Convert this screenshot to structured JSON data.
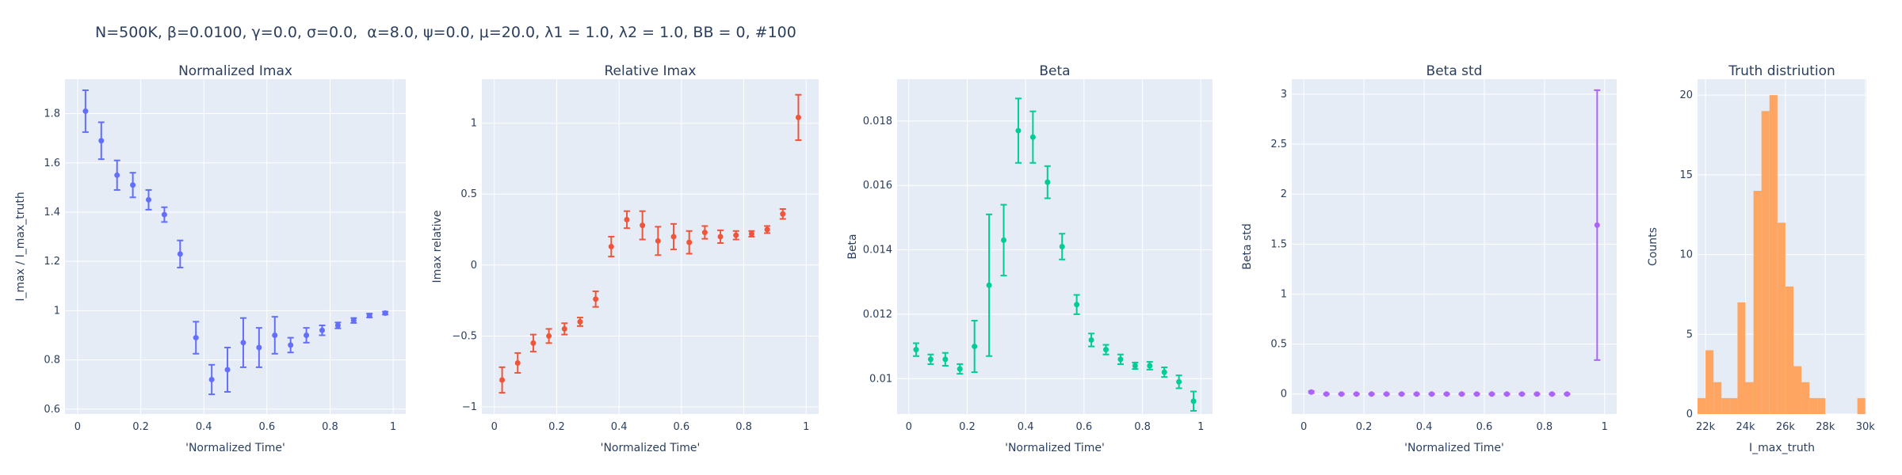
{
  "figure": {
    "title": "N=500K, β=0.0100, γ=0.0, σ=0.0,  α=8.0, ψ=0.0, μ=20.0, λ1 = 1.0, λ2 = 1.0, BB = 0, #100"
  },
  "chart_data": [
    {
      "type": "scatter",
      "title": "Normalized Imax",
      "xlabel": "'Normalized Time'",
      "ylabel": "I_max / I_max_truth",
      "xlim": [
        -0.04,
        1.04
      ],
      "ylim": [
        0.58,
        1.94
      ],
      "xticks": [
        0,
        0.2,
        0.4,
        0.6,
        0.8,
        1
      ],
      "xticklabels": [
        "0",
        "0.2",
        "0.4",
        "0.6",
        "0.8",
        "1"
      ],
      "yticks": [
        0.6,
        0.8,
        1,
        1.2,
        1.4,
        1.6,
        1.8
      ],
      "yticklabels": [
        "0.6",
        "0.8",
        "1",
        "1.2",
        "1.4",
        "1.6",
        "1.8"
      ],
      "color": "#636efa",
      "grid": true,
      "x": [
        0.025,
        0.075,
        0.125,
        0.175,
        0.225,
        0.275,
        0.325,
        0.375,
        0.425,
        0.475,
        0.525,
        0.575,
        0.625,
        0.675,
        0.725,
        0.775,
        0.825,
        0.875,
        0.925,
        0.975
      ],
      "y": [
        1.81,
        1.69,
        1.55,
        1.51,
        1.45,
        1.39,
        1.23,
        0.89,
        0.72,
        0.76,
        0.87,
        0.85,
        0.9,
        0.86,
        0.9,
        0.92,
        0.94,
        0.96,
        0.98,
        0.99
      ],
      "error": [
        0.085,
        0.075,
        0.06,
        0.05,
        0.04,
        0.03,
        0.055,
        0.065,
        0.06,
        0.09,
        0.1,
        0.08,
        0.075,
        0.03,
        0.03,
        0.02,
        0.012,
        0.01,
        0.008,
        0.006
      ]
    },
    {
      "type": "scatter",
      "title": "Relative Imax",
      "xlabel": "'Normalized Time'",
      "ylabel": "Imax relative",
      "xlim": [
        -0.04,
        1.04
      ],
      "ylim": [
        -1.05,
        1.31
      ],
      "xticks": [
        0,
        0.2,
        0.4,
        0.6,
        0.8,
        1
      ],
      "xticklabels": [
        "0",
        "0.2",
        "0.4",
        "0.6",
        "0.8",
        "1"
      ],
      "yticks": [
        -1,
        -0.5,
        0,
        0.5,
        1
      ],
      "yticklabels": [
        "−1",
        "−0.5",
        "0",
        "0.5",
        "1"
      ],
      "color": "#ef553b",
      "grid": true,
      "x": [
        0.025,
        0.075,
        0.125,
        0.175,
        0.225,
        0.275,
        0.325,
        0.375,
        0.425,
        0.475,
        0.525,
        0.575,
        0.625,
        0.675,
        0.725,
        0.775,
        0.825,
        0.875,
        0.925,
        0.975
      ],
      "y": [
        -0.81,
        -0.69,
        -0.55,
        -0.5,
        -0.45,
        -0.4,
        -0.24,
        0.13,
        0.32,
        0.28,
        0.17,
        0.2,
        0.16,
        0.23,
        0.2,
        0.21,
        0.22,
        0.25,
        0.36,
        1.04
      ],
      "error": [
        0.09,
        0.07,
        0.06,
        0.05,
        0.04,
        0.03,
        0.055,
        0.07,
        0.06,
        0.1,
        0.1,
        0.09,
        0.08,
        0.045,
        0.045,
        0.03,
        0.02,
        0.025,
        0.035,
        0.16
      ]
    },
    {
      "type": "scatter",
      "title": "Beta",
      "xlabel": "'Normalized Time'",
      "ylabel": "Beta",
      "xlim": [
        -0.04,
        1.04
      ],
      "ylim": [
        0.0089,
        0.0193
      ],
      "xticks": [
        0,
        0.2,
        0.4,
        0.6,
        0.8,
        1
      ],
      "xticklabels": [
        "0",
        "0.2",
        "0.4",
        "0.6",
        "0.8",
        "1"
      ],
      "yticks": [
        0.01,
        0.012,
        0.014,
        0.016,
        0.018
      ],
      "yticklabels": [
        "0.01",
        "0.012",
        "0.014",
        "0.016",
        "0.018"
      ],
      "color": "#00cc96",
      "grid": true,
      "x": [
        0.025,
        0.075,
        0.125,
        0.175,
        0.225,
        0.275,
        0.325,
        0.375,
        0.425,
        0.475,
        0.525,
        0.575,
        0.625,
        0.675,
        0.725,
        0.775,
        0.825,
        0.875,
        0.925,
        0.975
      ],
      "y": [
        0.0109,
        0.0106,
        0.0106,
        0.0103,
        0.011,
        0.0129,
        0.0143,
        0.0177,
        0.0175,
        0.0161,
        0.0141,
        0.0123,
        0.0112,
        0.0109,
        0.0106,
        0.0104,
        0.0104,
        0.0102,
        0.0099,
        0.0093
      ],
      "error": [
        0.0002,
        0.00015,
        0.0002,
        0.00015,
        0.0008,
        0.0022,
        0.0011,
        0.001,
        0.0008,
        0.0005,
        0.0004,
        0.0003,
        0.0002,
        0.00015,
        0.00015,
        0.0001,
        0.00012,
        0.00015,
        0.0002,
        0.0003
      ]
    },
    {
      "type": "scatter",
      "title": "Beta std",
      "xlabel": "'Normalized Time'",
      "ylabel": "Beta std",
      "xlim": [
        -0.04,
        1.04
      ],
      "ylim": [
        -0.2,
        3.15
      ],
      "xticks": [
        0,
        0.2,
        0.4,
        0.6,
        0.8,
        1
      ],
      "xticklabels": [
        "0",
        "0.2",
        "0.4",
        "0.6",
        "0.8",
        "1"
      ],
      "yticks": [
        0,
        0.5,
        1,
        1.5,
        2,
        2.5,
        3
      ],
      "yticklabels": [
        "0",
        "0.5",
        "1",
        "1.5",
        "2",
        "2.5",
        "3"
      ],
      "color": "#ab63fa",
      "grid": true,
      "x": [
        0.025,
        0.075,
        0.125,
        0.175,
        0.225,
        0.275,
        0.325,
        0.375,
        0.425,
        0.475,
        0.525,
        0.575,
        0.625,
        0.675,
        0.725,
        0.775,
        0.825,
        0.875,
        0.975
      ],
      "y": [
        0.02,
        0.0,
        0.0,
        0.0,
        0.0,
        0.0,
        0.0,
        0.0,
        0.0,
        0.0,
        0.0,
        0.0,
        0.0,
        0.0,
        0.0,
        0.0,
        0.0,
        0.0,
        1.69
      ],
      "error": [
        0.01,
        0.005,
        0.005,
        0.005,
        0.005,
        0.005,
        0.005,
        0.005,
        0.005,
        0.005,
        0.005,
        0.005,
        0.005,
        0.005,
        0.005,
        0.005,
        0.005,
        0.005,
        1.35
      ]
    },
    {
      "type": "bar",
      "title": "Truth distriution",
      "xlabel": "I_max_truth",
      "ylabel": "Counts",
      "xlim": [
        21600,
        30050
      ],
      "ylim": [
        0,
        21
      ],
      "xticks": [
        22000,
        24000,
        26000,
        28000,
        30000
      ],
      "xticklabels": [
        "22k",
        "24k",
        "26k",
        "28k",
        "30k"
      ],
      "yticks": [
        0,
        5,
        10,
        15,
        20
      ],
      "yticklabels": [
        "0",
        "5",
        "10",
        "15",
        "20"
      ],
      "color": "#ffa15a",
      "grid": true,
      "bin_width": 400,
      "bin_starts": [
        21600,
        22000,
        22400,
        22800,
        23200,
        23600,
        24000,
        24400,
        24800,
        25200,
        25600,
        26000,
        26400,
        26800,
        27200,
        27600,
        28000,
        28400,
        28800,
        29200,
        29600
      ],
      "values": [
        1,
        4,
        2,
        1,
        1,
        7,
        2,
        14,
        19,
        20,
        12,
        8,
        3,
        2,
        1,
        1,
        0,
        0,
        0,
        0,
        1
      ]
    }
  ]
}
